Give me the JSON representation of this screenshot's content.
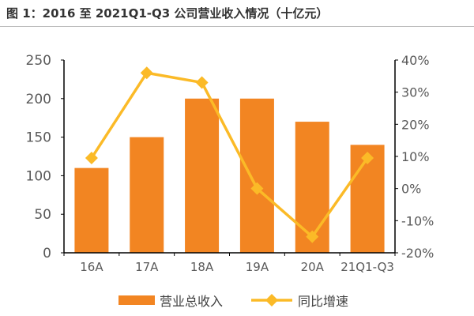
{
  "chart_data": {
    "type": "bar+line",
    "title": "图 1：2016 至 2021Q1-Q3 公司营业收入情况（十亿元）",
    "categories": [
      "16A",
      "17A",
      "18A",
      "19A",
      "20A",
      "21Q1-Q3"
    ],
    "series": [
      {
        "name": "营业总收入",
        "type": "bar",
        "axis": "left",
        "values": [
          110,
          150,
          200,
          200,
          170,
          140
        ],
        "color": "#F28522"
      },
      {
        "name": "同比增速",
        "type": "line",
        "axis": "right",
        "values": [
          9.5,
          36,
          33,
          0,
          -15,
          9.5
        ],
        "color": "#FBBA27",
        "marker": "diamond"
      }
    ],
    "left_axis": {
      "min": 0,
      "max": 250,
      "ticks": [
        "0",
        "50",
        "100",
        "150",
        "200",
        "250"
      ]
    },
    "right_axis": {
      "min": -20,
      "max": 40,
      "ticks": [
        "-20%",
        "-10%",
        "0%",
        "10%",
        "20%",
        "30%",
        "40%"
      ]
    },
    "grid": false,
    "legend": "bottom"
  }
}
